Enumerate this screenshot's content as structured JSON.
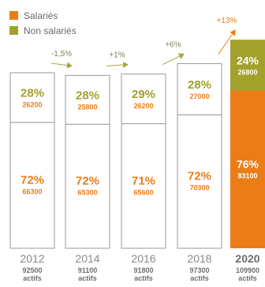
{
  "legend": {
    "salaries": "Salariés",
    "non_salaries": "Non salariés"
  },
  "colors": {
    "salaries": "#ea7d17",
    "non_salaries": "#a2a12c",
    "outline": "#9a9a9a",
    "arrow": "#a9a63f",
    "arrow_last": "#ea7d17",
    "year": "#8a8a8a",
    "total": "#6e6e6e"
  },
  "chart_data": {
    "type": "bar",
    "stacked": true,
    "categories": [
      "2012",
      "2014",
      "2016",
      "2018",
      "2020"
    ],
    "series": [
      {
        "name": "Salariés",
        "percent_labels": [
          "72%",
          "72%",
          "71%",
          "72%",
          "76%"
        ],
        "value_labels": [
          "66300",
          "65300",
          "65600",
          "70300",
          "83100"
        ],
        "values": [
          66300,
          65300,
          65600,
          70300,
          83100
        ]
      },
      {
        "name": "Non salariés",
        "percent_labels": [
          "28%",
          "28%",
          "29%",
          "28%",
          "24%"
        ],
        "value_labels": [
          "26200",
          "25800",
          "26200",
          "27000",
          "26800"
        ],
        "values": [
          26200,
          25800,
          26200,
          27000,
          26800
        ]
      }
    ],
    "totals": [
      92500,
      91100,
      91800,
      97300,
      109900
    ],
    "total_labels": [
      "92500",
      "91100",
      "91800",
      "97300",
      "109900"
    ],
    "total_unit": "actifs",
    "growth_labels": [
      "-1,5%",
      "+1%",
      "+6%",
      "+13%"
    ],
    "ylim": [
      0,
      109900
    ],
    "highlight_category": "2020"
  }
}
